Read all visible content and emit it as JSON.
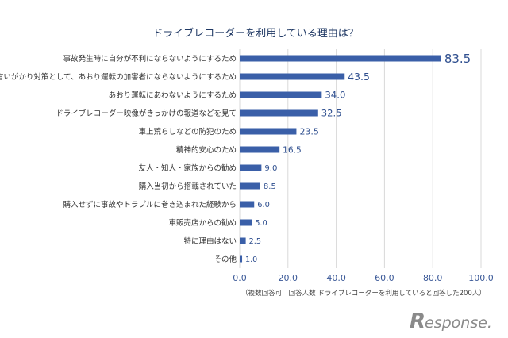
{
  "chart_data": {
    "type": "bar",
    "orientation": "horizontal",
    "title": "ドライブレコーダーを利用している理由は？",
    "categories": [
      "事故発生時に自分が不利にならないようにするため",
      "言いがかり対策として、あおり運転の加害者にならないようにするため",
      "あおり運転にあわないようにするため",
      "ドライブレコーダー映像がきっかけの報道などを見て",
      "車上荒らしなどの防犯のため",
      "精神的安心のため",
      "友人・知人・家族からの勧め",
      "購入当初から搭載されていた",
      "購入せずに事故やトラブルに巻き込まれた経験から",
      "車販売店からの勧め",
      "特に理由はない",
      "その他"
    ],
    "values": [
      83.5,
      43.5,
      34.0,
      32.5,
      23.5,
      16.5,
      9.0,
      8.5,
      6.0,
      5.0,
      2.5,
      1.0
    ],
    "value_labels": [
      "83.5",
      "43.5",
      "34.0",
      "32.5",
      "23.5",
      "16.5",
      "9.0",
      "8.5",
      "6.0",
      "5.0",
      "2.5",
      "1.0"
    ],
    "xlim": [
      0,
      100
    ],
    "xticks": [
      "0.0",
      "20.0",
      "40.0",
      "60.0",
      "80.0",
      "100.0"
    ],
    "grid": true,
    "bar_color": "#3a5fa8",
    "note": "（複数回答可　回答人数 ドライブレコーダーを利用していると回答した200人）"
  },
  "watermark": {
    "text": "esponse."
  }
}
